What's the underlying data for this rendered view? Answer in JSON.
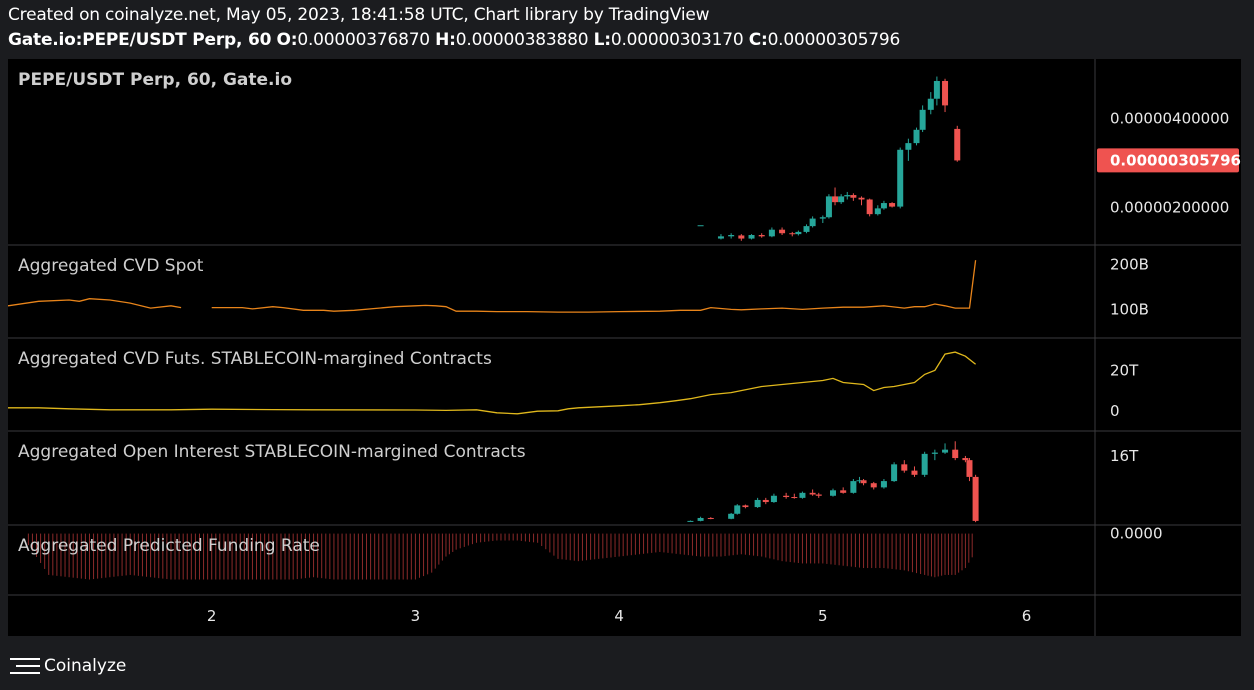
{
  "header": {
    "line1": "Created on coinalyze.net, May 05, 2023, 18:41:58 UTC, Chart library by TradingView",
    "symbol_interval": "Gate.io:PEPE/USDT Perp, 60",
    "o_label": "O:",
    "o_value": "0.00000376870",
    "h_label": "H:",
    "h_value": "0.00000383880",
    "l_label": "L:",
    "l_value": "0.00000303170",
    "c_label": "C:",
    "c_value": "0.00000305796"
  },
  "footer": {
    "brand": "Coinalyze",
    "logo_icon": "coinalyze-logo-icon"
  },
  "colors": {
    "up": "#26a69a",
    "down": "#ef5350",
    "cvd_spot": "#e8841a",
    "cvd_futs": "#e0b81c",
    "funding": "#8b2a2a",
    "price_tag": "#ef5350"
  },
  "chart_data": [
    {
      "type": "candlestick",
      "title": "PEPE/USDT Perp, 60, Gate.io",
      "last_price_label": "0.00000305796",
      "y_ticks": [
        {
          "v": 4e-06,
          "label": "0.00000400000"
        },
        {
          "v": 2e-06,
          "label": "0.00000200000"
        }
      ],
      "ylim": [
        1.2e-06,
        5.3e-06
      ],
      "candles": [
        [
          4.4,
          1.6,
          1.6,
          1.6,
          1.6
        ],
        [
          4.5,
          1.3,
          1.4,
          1.28,
          1.35
        ],
        [
          4.55,
          1.35,
          1.42,
          1.3,
          1.38
        ],
        [
          4.6,
          1.37,
          1.4,
          1.25,
          1.3
        ],
        [
          4.65,
          1.3,
          1.4,
          1.28,
          1.38
        ],
        [
          4.7,
          1.38,
          1.42,
          1.32,
          1.35
        ],
        [
          4.75,
          1.35,
          1.55,
          1.33,
          1.5
        ],
        [
          4.8,
          1.5,
          1.55,
          1.38,
          1.42
        ],
        [
          4.85,
          1.42,
          1.45,
          1.35,
          1.4
        ],
        [
          4.88,
          1.4,
          1.48,
          1.37,
          1.45
        ],
        [
          4.92,
          1.45,
          1.62,
          1.42,
          1.58
        ],
        [
          4.95,
          1.58,
          1.8,
          1.55,
          1.75
        ],
        [
          5.0,
          1.75,
          1.82,
          1.65,
          1.78
        ],
        [
          5.03,
          1.78,
          2.3,
          1.75,
          2.25
        ],
        [
          5.06,
          2.25,
          2.45,
          2.05,
          2.12
        ],
        [
          5.09,
          2.12,
          2.3,
          2.08,
          2.25
        ],
        [
          5.12,
          2.25,
          2.35,
          2.18,
          2.28
        ],
        [
          5.15,
          2.28,
          2.32,
          2.15,
          2.22
        ],
        [
          5.19,
          2.22,
          2.25,
          2.05,
          2.18
        ],
        [
          5.23,
          2.18,
          2.2,
          1.8,
          1.85
        ],
        [
          5.27,
          1.85,
          2.05,
          1.82,
          1.98
        ],
        [
          5.3,
          1.98,
          2.15,
          1.95,
          2.1
        ],
        [
          5.34,
          2.1,
          2.12,
          2.0,
          2.02
        ],
        [
          5.38,
          2.02,
          3.35,
          1.98,
          3.3
        ],
        [
          5.42,
          3.3,
          3.55,
          3.05,
          3.45
        ],
        [
          5.46,
          3.45,
          3.8,
          3.4,
          3.75
        ],
        [
          5.49,
          3.75,
          4.3,
          3.7,
          4.2
        ],
        [
          5.53,
          4.2,
          4.6,
          4.1,
          4.45
        ],
        [
          5.56,
          4.45,
          4.95,
          4.3,
          4.85
        ],
        [
          5.6,
          4.85,
          4.9,
          4.15,
          4.3
        ],
        [
          5.66,
          3.77,
          3.84,
          3.03,
          3.06
        ]
      ]
    },
    {
      "type": "line",
      "title": "Aggregated CVD Spot",
      "y_ticks": [
        {
          "v": 200,
          "label": "200B"
        },
        {
          "v": 100,
          "label": "100B"
        }
      ],
      "ylim": [
        45,
        235
      ],
      "series": [
        {
          "values": [
            [
              1.0,
              108
            ],
            [
              1.15,
              118
            ],
            [
              1.3,
              121
            ],
            [
              1.35,
              118
            ],
            [
              1.4,
              124
            ],
            [
              1.5,
              121
            ],
            [
              1.6,
              114
            ],
            [
              1.7,
              103
            ],
            [
              1.8,
              108
            ],
            [
              1.85,
              104
            ],
            null,
            [
              2.0,
              104
            ],
            [
              2.15,
              104
            ],
            [
              2.2,
              101
            ],
            [
              2.3,
              106
            ],
            [
              2.35,
              104
            ],
            [
              2.45,
              98
            ],
            [
              2.55,
              98
            ],
            [
              2.6,
              96
            ],
            [
              2.7,
              98
            ],
            [
              2.8,
              102
            ],
            [
              2.9,
              106
            ],
            [
              3.0,
              108
            ],
            [
              3.05,
              109
            ],
            [
              3.1,
              108
            ],
            [
              3.15,
              106
            ],
            [
              3.2,
              96
            ],
            [
              3.3,
              96
            ],
            [
              3.4,
              95
            ],
            [
              3.55,
              95
            ],
            [
              3.7,
              94
            ],
            [
              3.85,
              94
            ],
            [
              4.0,
              95
            ],
            [
              4.2,
              96
            ],
            [
              4.3,
              98
            ],
            [
              4.4,
              98
            ],
            [
              4.45,
              104
            ],
            [
              4.55,
              100
            ],
            [
              4.6,
              99
            ],
            [
              4.7,
              101
            ],
            [
              4.8,
              103
            ],
            [
              4.9,
              100
            ],
            [
              5.0,
              103
            ],
            [
              5.1,
              105
            ],
            [
              5.2,
              105
            ],
            [
              5.3,
              108
            ],
            [
              5.4,
              103
            ],
            [
              5.45,
              106
            ],
            [
              5.5,
              106
            ],
            [
              5.55,
              112
            ],
            [
              5.6,
              108
            ],
            [
              5.65,
              103
            ],
            [
              5.72,
              103
            ],
            [
              5.75,
              210
            ]
          ]
        }
      ]
    },
    {
      "type": "line",
      "title": "Aggregated CVD Futs. STABLECOIN-margined Contracts",
      "y_ticks": [
        {
          "v": 20,
          "label": "20T"
        },
        {
          "v": 0,
          "label": "0"
        }
      ],
      "ylim": [
        -8,
        34
      ],
      "series": [
        {
          "values": [
            [
              1.0,
              1.5
            ],
            [
              1.15,
              1.5
            ],
            [
              1.3,
              1.0
            ],
            [
              1.5,
              0.5
            ],
            [
              1.8,
              0.5
            ],
            [
              2.0,
              0.8
            ],
            [
              2.3,
              0.6
            ],
            [
              2.5,
              0.5
            ],
            [
              3.0,
              0.4
            ],
            [
              3.15,
              0.2
            ],
            [
              3.3,
              0.5
            ],
            [
              3.4,
              -1.0
            ],
            [
              3.5,
              -1.5
            ],
            [
              3.6,
              -0.2
            ],
            [
              3.7,
              0.0
            ],
            [
              3.75,
              1.0
            ],
            [
              3.8,
              1.5
            ],
            [
              3.9,
              2.0
            ],
            [
              4.0,
              2.5
            ],
            [
              4.1,
              3.0
            ],
            [
              4.15,
              3.5
            ],
            [
              4.2,
              4.0
            ],
            [
              4.28,
              5.0
            ],
            [
              4.35,
              6.0
            ],
            [
              4.45,
              8.0
            ],
            [
              4.55,
              9.0
            ],
            [
              4.7,
              12.0
            ],
            [
              4.8,
              13.0
            ],
            [
              4.9,
              14.0
            ],
            [
              5.0,
              15.0
            ],
            [
              5.05,
              16.0
            ],
            [
              5.1,
              14.0
            ],
            [
              5.2,
              13.0
            ],
            [
              5.25,
              10.0
            ],
            [
              5.3,
              11.5
            ],
            [
              5.35,
              12.0
            ],
            [
              5.4,
              13.0
            ],
            [
              5.45,
              14.0
            ],
            [
              5.5,
              18.0
            ],
            [
              5.55,
              20.0
            ],
            [
              5.6,
              28.0
            ],
            [
              5.65,
              29.0
            ],
            [
              5.7,
              27.0
            ],
            [
              5.75,
              23.0
            ]
          ]
        }
      ]
    },
    {
      "type": "candlestick",
      "title": "Aggregated Open Interest STABLECOIN-margined Contracts",
      "y_ticks": [
        {
          "v": 16,
          "label": "16T"
        }
      ],
      "ylim": [
        0,
        21
      ],
      "candles": [
        [
          4.35,
          0.5,
          0.6,
          0.4,
          0.5
        ],
        [
          4.4,
          0.5,
          1.5,
          0.4,
          1.2
        ],
        [
          4.45,
          1.2,
          1.4,
          0.9,
          1.0
        ],
        [
          4.55,
          1.0,
          2.4,
          0.9,
          2.2
        ],
        [
          4.58,
          2.2,
          4.5,
          2.0,
          4.2
        ],
        [
          4.62,
          4.2,
          4.4,
          3.5,
          3.8
        ],
        [
          4.68,
          3.8,
          6.0,
          3.6,
          5.5
        ],
        [
          4.72,
          5.5,
          6.0,
          4.5,
          5.0
        ],
        [
          4.76,
          5.0,
          7.0,
          4.8,
          6.5
        ],
        [
          4.82,
          6.5,
          7.2,
          5.8,
          6.2
        ],
        [
          4.86,
          6.2,
          7.0,
          5.8,
          6.0
        ],
        [
          4.9,
          6.0,
          7.5,
          5.8,
          7.2
        ],
        [
          4.95,
          7.2,
          8.0,
          6.5,
          6.8
        ],
        [
          4.98,
          6.8,
          7.2,
          6.0,
          6.5
        ],
        [
          5.05,
          6.5,
          8.2,
          6.3,
          7.8
        ],
        [
          5.1,
          7.8,
          8.5,
          7.0,
          7.2
        ],
        [
          5.15,
          7.2,
          10.5,
          7.0,
          10.0
        ],
        [
          5.18,
          10.0,
          11.0,
          9.5,
          10.2
        ],
        [
          5.2,
          10.2,
          10.5,
          9.0,
          9.5
        ],
        [
          5.25,
          9.5,
          9.8,
          8.0,
          8.5
        ],
        [
          5.3,
          8.5,
          10.5,
          8.2,
          10.0
        ],
        [
          5.35,
          10.0,
          14.5,
          9.8,
          14.0
        ],
        [
          5.4,
          14.0,
          15.0,
          12.0,
          12.5
        ],
        [
          5.45,
          12.5,
          13.5,
          11.0,
          11.5
        ],
        [
          5.5,
          11.5,
          17.0,
          11.0,
          16.5
        ],
        [
          5.55,
          16.5,
          17.5,
          15.0,
          16.8
        ],
        [
          5.6,
          16.8,
          19.0,
          16.5,
          17.5
        ],
        [
          5.65,
          17.5,
          19.5,
          15.0,
          15.5
        ],
        [
          5.7,
          15.5,
          16.0,
          14.5,
          15.0
        ],
        [
          5.72,
          15.0,
          15.5,
          10.0,
          11.0
        ],
        [
          5.75,
          11.0,
          11.5,
          0.2,
          0.5
        ]
      ]
    },
    {
      "type": "bar",
      "title": "Aggregated Predicted Funding Rate",
      "y_ticks": [
        {
          "v": 0,
          "label": "0.0000"
        }
      ],
      "ylim": [
        -1.25,
        0.1
      ],
      "values_note_x_range": "columns",
      "series": [
        {
          "values": [
            [
              1.1,
              -0.25
            ],
            [
              1.2,
              -0.9
            ],
            [
              1.3,
              -0.95
            ],
            [
              1.4,
              -1.0
            ],
            [
              1.5,
              -0.95
            ],
            [
              1.6,
              -0.9
            ],
            [
              1.7,
              -0.95
            ],
            [
              1.8,
              -1.0
            ],
            [
              1.9,
              -1.0
            ],
            [
              2.0,
              -1.0
            ],
            [
              2.1,
              -1.0
            ],
            [
              2.2,
              -1.0
            ],
            [
              2.3,
              -1.0
            ],
            [
              2.4,
              -1.0
            ],
            [
              2.5,
              -0.95
            ],
            [
              2.6,
              -1.0
            ],
            [
              2.7,
              -1.0
            ],
            [
              2.8,
              -1.0
            ],
            [
              2.9,
              -1.0
            ],
            [
              3.0,
              -1.0
            ],
            [
              3.08,
              -0.85
            ],
            [
              3.15,
              -0.5
            ],
            [
              3.2,
              -0.35
            ],
            [
              3.3,
              -0.2
            ],
            [
              3.4,
              -0.15
            ],
            [
              3.5,
              -0.15
            ],
            [
              3.6,
              -0.2
            ],
            [
              3.7,
              -0.55
            ],
            [
              3.8,
              -0.6
            ],
            [
              3.9,
              -0.55
            ],
            [
              4.0,
              -0.5
            ],
            [
              4.1,
              -0.45
            ],
            [
              4.2,
              -0.4
            ],
            [
              4.3,
              -0.45
            ],
            [
              4.4,
              -0.5
            ],
            [
              4.5,
              -0.5
            ],
            [
              4.6,
              -0.45
            ],
            [
              4.7,
              -0.5
            ],
            [
              4.8,
              -0.6
            ],
            [
              4.9,
              -0.65
            ],
            [
              5.0,
              -0.65
            ],
            [
              5.1,
              -0.7
            ],
            [
              5.2,
              -0.75
            ],
            [
              5.3,
              -0.75
            ],
            [
              5.4,
              -0.8
            ],
            [
              5.5,
              -0.9
            ],
            [
              5.55,
              -0.95
            ],
            [
              5.6,
              -0.9
            ],
            [
              5.65,
              -0.9
            ],
            [
              5.7,
              -0.75
            ],
            [
              5.75,
              -0.4
            ]
          ]
        }
      ]
    }
  ],
  "x_axis": {
    "ticks": [
      2,
      3,
      4,
      5,
      6
    ],
    "labels": [
      "2",
      "3",
      "4",
      "5",
      "6"
    ],
    "xlim": [
      1.0,
      6.4
    ]
  }
}
